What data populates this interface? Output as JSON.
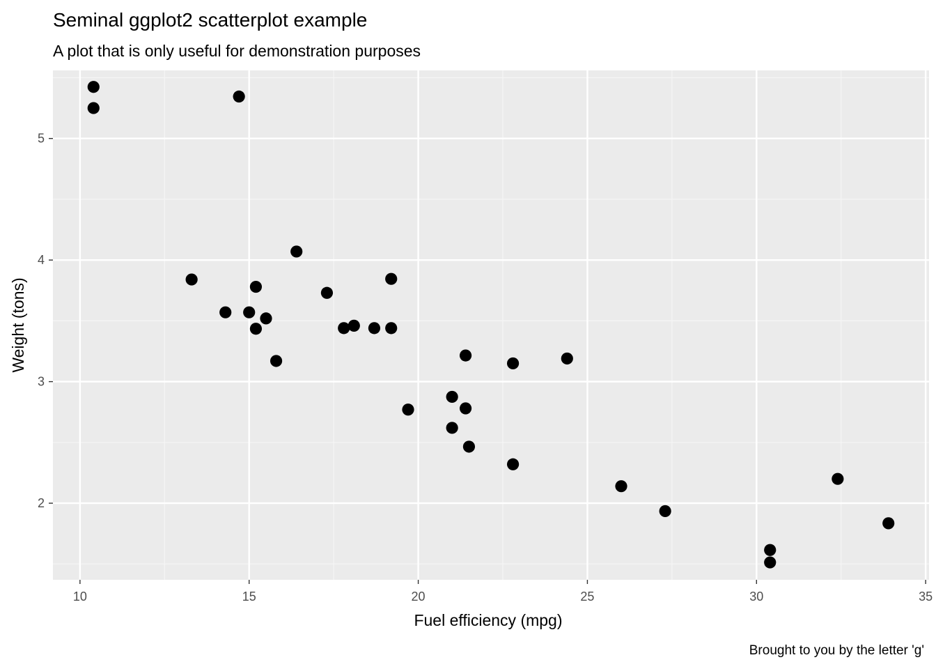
{
  "colors": {
    "panel_background": "#EBEBEB",
    "grid_major": "#FFFFFF",
    "grid_minor": "#F5F5F5",
    "point": "#000000",
    "tick_label": "#4D4D4D",
    "tick_mark": "#333333"
  },
  "chart_data": {
    "type": "scatter",
    "title": "Seminal ggplot2 scatterplot example",
    "subtitle": "A plot that is only useful for demonstration purposes",
    "xlabel": "Fuel efficiency (mpg)",
    "ylabel": "Weight (tons)",
    "caption": "Brought to you by the letter 'g'",
    "xlim": [
      9.2,
      35.1
    ],
    "ylim": [
      1.37,
      5.56
    ],
    "x_ticks": [
      10,
      15,
      20,
      25,
      30,
      35
    ],
    "x_tick_labels": [
      "10",
      "15",
      "20",
      "25",
      "30",
      "35"
    ],
    "y_ticks": [
      2,
      3,
      4,
      5
    ],
    "y_tick_labels": [
      "2",
      "3",
      "4",
      "5"
    ],
    "x_minor": [
      12.5,
      17.5,
      22.5,
      27.5,
      32.5
    ],
    "y_minor": [
      1.5,
      2.5,
      3.5,
      4.5,
      5.5
    ],
    "grid": true,
    "legend": "none",
    "points": [
      {
        "x": 21.0,
        "y": 2.62
      },
      {
        "x": 21.0,
        "y": 2.875
      },
      {
        "x": 22.8,
        "y": 2.32
      },
      {
        "x": 21.4,
        "y": 3.215
      },
      {
        "x": 18.7,
        "y": 3.44
      },
      {
        "x": 18.1,
        "y": 3.46
      },
      {
        "x": 14.3,
        "y": 3.57
      },
      {
        "x": 24.4,
        "y": 3.19
      },
      {
        "x": 22.8,
        "y": 3.15
      },
      {
        "x": 19.2,
        "y": 3.44
      },
      {
        "x": 17.8,
        "y": 3.44
      },
      {
        "x": 16.4,
        "y": 4.07
      },
      {
        "x": 17.3,
        "y": 3.73
      },
      {
        "x": 15.2,
        "y": 3.78
      },
      {
        "x": 10.4,
        "y": 5.25
      },
      {
        "x": 10.4,
        "y": 5.424
      },
      {
        "x": 14.7,
        "y": 5.345
      },
      {
        "x": 32.4,
        "y": 2.2
      },
      {
        "x": 30.4,
        "y": 1.615
      },
      {
        "x": 33.9,
        "y": 1.835
      },
      {
        "x": 21.5,
        "y": 2.465
      },
      {
        "x": 15.5,
        "y": 3.52
      },
      {
        "x": 15.2,
        "y": 3.435
      },
      {
        "x": 13.3,
        "y": 3.84
      },
      {
        "x": 19.2,
        "y": 3.845
      },
      {
        "x": 27.3,
        "y": 1.935
      },
      {
        "x": 26.0,
        "y": 2.14
      },
      {
        "x": 30.4,
        "y": 1.513
      },
      {
        "x": 15.8,
        "y": 3.17
      },
      {
        "x": 19.7,
        "y": 2.77
      },
      {
        "x": 15.0,
        "y": 3.57
      },
      {
        "x": 21.4,
        "y": 2.78
      }
    ]
  }
}
